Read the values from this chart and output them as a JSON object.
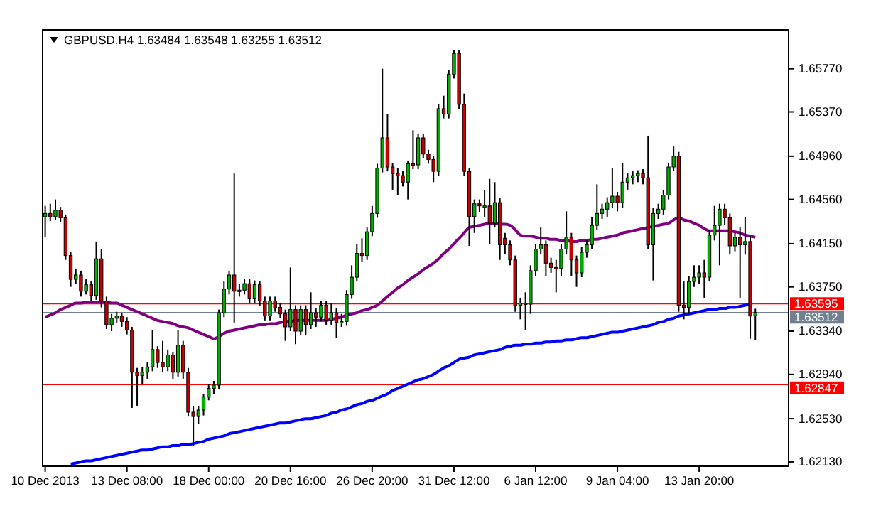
{
  "chart_data": {
    "type": "candlestick",
    "title": "GBPUSD,H4  1.63484 1.63548 1.63255 1.63512",
    "categories": [
      "10 Dec 2013",
      null,
      null,
      null,
      null,
      null,
      null,
      null,
      null,
      null,
      null,
      null,
      null,
      null,
      null,
      null,
      "13 Dec 08:00",
      null,
      null,
      null,
      null,
      null,
      null,
      null,
      null,
      null,
      null,
      null,
      null,
      null,
      null,
      null,
      "18 Dec 00:00",
      null,
      null,
      null,
      null,
      null,
      null,
      null,
      null,
      null,
      null,
      null,
      null,
      null,
      null,
      null,
      "20 Dec 16:00",
      null,
      null,
      null,
      null,
      null,
      null,
      null,
      null,
      null,
      null,
      null,
      null,
      null,
      null,
      null,
      "26 Dec 20:00",
      null,
      null,
      null,
      null,
      null,
      null,
      null,
      null,
      null,
      null,
      null,
      null,
      null,
      null,
      null,
      "31 Dec 12:00",
      null,
      null,
      null,
      null,
      null,
      null,
      null,
      null,
      null,
      null,
      null,
      null,
      null,
      null,
      null,
      "6 Jan 12:00",
      null,
      null,
      null,
      null,
      null,
      null,
      null,
      null,
      null,
      null,
      null,
      null,
      null,
      null,
      null,
      "9 Jan 04:00",
      null,
      null,
      null,
      null,
      null,
      null,
      null,
      null,
      null,
      null,
      null,
      null,
      null,
      null,
      null,
      "13 Jan 20:00",
      null,
      null,
      null,
      null,
      null,
      null,
      null,
      null,
      null,
      null,
      null
    ],
    "ohlc": [
      [
        1.644,
        1.645,
        1.6421,
        1.6443
      ],
      [
        1.6443,
        1.6452,
        1.6436,
        1.644
      ],
      [
        1.644,
        1.6456,
        1.6437,
        1.6446
      ],
      [
        1.6446,
        1.6449,
        1.6435,
        1.6439
      ],
      [
        1.6439,
        1.6442,
        1.64,
        1.6404
      ],
      [
        1.6404,
        1.6407,
        1.6375,
        1.6382
      ],
      [
        1.6382,
        1.6392,
        1.6378,
        1.6386
      ],
      [
        1.6386,
        1.639,
        1.6366,
        1.6371
      ],
      [
        1.6371,
        1.6382,
        1.6368,
        1.6377
      ],
      [
        1.6377,
        1.638,
        1.6362,
        1.6367
      ],
      [
        1.6367,
        1.6417,
        1.6363,
        1.6401
      ],
      [
        1.6401,
        1.641,
        1.6356,
        1.6362
      ],
      [
        1.6362,
        1.6366,
        1.6336,
        1.634
      ],
      [
        1.634,
        1.635,
        1.6334,
        1.6346
      ],
      [
        1.6346,
        1.6352,
        1.6342,
        1.6348
      ],
      [
        1.6348,
        1.6351,
        1.6338,
        1.6343
      ],
      [
        1.6343,
        1.6347,
        1.6331,
        1.6335
      ],
      [
        1.6335,
        1.6338,
        1.6263,
        1.6296
      ],
      [
        1.6296,
        1.63,
        1.6265,
        1.6293
      ],
      [
        1.6293,
        1.6301,
        1.6285,
        1.6296
      ],
      [
        1.6296,
        1.6305,
        1.629,
        1.6301
      ],
      [
        1.6301,
        1.6335,
        1.6297,
        1.6317
      ],
      [
        1.6317,
        1.632,
        1.63,
        1.6305
      ],
      [
        1.6305,
        1.6325,
        1.6296,
        1.6301
      ],
      [
        1.6301,
        1.6317,
        1.6297,
        1.6312
      ],
      [
        1.6312,
        1.6315,
        1.629,
        1.6296
      ],
      [
        1.6296,
        1.6335,
        1.6292,
        1.6321
      ],
      [
        1.6321,
        1.6325,
        1.629,
        1.6296
      ],
      [
        1.6296,
        1.63,
        1.6255,
        1.6259
      ],
      [
        1.6259,
        1.6265,
        1.6228,
        1.6255
      ],
      [
        1.6255,
        1.6265,
        1.6248,
        1.6261
      ],
      [
        1.6261,
        1.6276,
        1.6256,
        1.6273
      ],
      [
        1.6273,
        1.6285,
        1.627,
        1.6281
      ],
      [
        1.6281,
        1.6288,
        1.6276,
        1.6284
      ],
      [
        1.6284,
        1.6354,
        1.628,
        1.6351
      ],
      [
        1.6351,
        1.638,
        1.6347,
        1.6373
      ],
      [
        1.6373,
        1.639,
        1.6368,
        1.6386
      ],
      [
        1.6386,
        1.648,
        1.6342,
        1.6371
      ],
      [
        1.6371,
        1.6378,
        1.6366,
        1.6372
      ],
      [
        1.6372,
        1.6382,
        1.6368,
        1.6378
      ],
      [
        1.6378,
        1.6382,
        1.636,
        1.6364
      ],
      [
        1.6364,
        1.6381,
        1.636,
        1.6377
      ],
      [
        1.6377,
        1.638,
        1.6357,
        1.6362
      ],
      [
        1.6362,
        1.6366,
        1.6344,
        1.6348
      ],
      [
        1.6348,
        1.6366,
        1.6344,
        1.6362
      ],
      [
        1.6362,
        1.6366,
        1.6352,
        1.6356
      ],
      [
        1.6356,
        1.636,
        1.6346,
        1.635
      ],
      [
        1.635,
        1.6354,
        1.6325,
        1.6338
      ],
      [
        1.6338,
        1.6393,
        1.6334,
        1.6354
      ],
      [
        1.6354,
        1.6358,
        1.6322,
        1.6334
      ],
      [
        1.6334,
        1.6358,
        1.633,
        1.6354
      ],
      [
        1.6354,
        1.6358,
        1.633,
        1.634
      ],
      [
        1.634,
        1.637,
        1.6336,
        1.6351
      ],
      [
        1.6351,
        1.6355,
        1.6338,
        1.6347
      ],
      [
        1.6347,
        1.6362,
        1.6343,
        1.6358
      ],
      [
        1.6358,
        1.6362,
        1.634,
        1.6344
      ],
      [
        1.6344,
        1.636,
        1.634,
        1.6351
      ],
      [
        1.6351,
        1.6355,
        1.6328,
        1.6342
      ],
      [
        1.6342,
        1.635,
        1.6338,
        1.6343
      ],
      [
        1.6343,
        1.6372,
        1.6339,
        1.6368
      ],
      [
        1.6368,
        1.6395,
        1.6364,
        1.6384
      ],
      [
        1.6384,
        1.6415,
        1.638,
        1.6406
      ],
      [
        1.6406,
        1.642,
        1.6398,
        1.6404
      ],
      [
        1.6404,
        1.643,
        1.64,
        1.6426
      ],
      [
        1.6426,
        1.645,
        1.6422,
        1.6443
      ],
      [
        1.6443,
        1.6489,
        1.6439,
        1.6485
      ],
      [
        1.6485,
        1.6577,
        1.6481,
        1.6513
      ],
      [
        1.6513,
        1.6535,
        1.6482,
        1.6486
      ],
      [
        1.6486,
        1.649,
        1.6465,
        1.648
      ],
      [
        1.648,
        1.6485,
        1.646,
        1.6478
      ],
      [
        1.6478,
        1.6482,
        1.6468,
        1.6472
      ],
      [
        1.6472,
        1.6492,
        1.6456,
        1.6489
      ],
      [
        1.6489,
        1.652,
        1.6484,
        1.6488
      ],
      [
        1.6488,
        1.6517,
        1.6484,
        1.6513
      ],
      [
        1.6513,
        1.6517,
        1.6494,
        1.6498
      ],
      [
        1.6498,
        1.6502,
        1.6489,
        1.6493
      ],
      [
        1.6493,
        1.6496,
        1.6472,
        1.6482
      ],
      [
        1.6482,
        1.6544,
        1.6478,
        1.654
      ],
      [
        1.654,
        1.6552,
        1.6531,
        1.6535
      ],
      [
        1.6535,
        1.6576,
        1.6531,
        1.6572
      ],
      [
        1.6572,
        1.6594,
        1.6568,
        1.6591
      ],
      [
        1.6591,
        1.6594,
        1.654,
        1.6544
      ],
      [
        1.6544,
        1.6554,
        1.6478,
        1.6482
      ],
      [
        1.6482,
        1.6485,
        1.6413,
        1.644
      ],
      [
        1.644,
        1.6456,
        1.6425,
        1.6452
      ],
      [
        1.6452,
        1.6456,
        1.6444,
        1.645
      ],
      [
        1.645,
        1.6465,
        1.644,
        1.645
      ],
      [
        1.645,
        1.6475,
        1.6415,
        1.6434
      ],
      [
        1.6434,
        1.6472,
        1.643,
        1.6453
      ],
      [
        1.6453,
        1.6457,
        1.64,
        1.6414
      ],
      [
        1.642,
        1.6425,
        1.6405,
        1.6414
      ],
      [
        1.6414,
        1.6418,
        1.6395,
        1.64
      ],
      [
        1.64,
        1.6404,
        1.6352,
        1.6358
      ],
      [
        1.6358,
        1.6365,
        1.6345,
        1.636
      ],
      [
        1.636,
        1.637,
        1.6335,
        1.6359
      ],
      [
        1.6359,
        1.6395,
        1.635,
        1.639
      ],
      [
        1.639,
        1.6415,
        1.6385,
        1.641
      ],
      [
        1.641,
        1.643,
        1.6405,
        1.6414
      ],
      [
        1.6414,
        1.6418,
        1.6385,
        1.6397
      ],
      [
        1.6397,
        1.6402,
        1.6388,
        1.6393
      ],
      [
        1.6393,
        1.64,
        1.637,
        1.6392
      ],
      [
        1.6392,
        1.6415,
        1.6385,
        1.641
      ],
      [
        1.641,
        1.6445,
        1.6405,
        1.6421
      ],
      [
        1.6421,
        1.6425,
        1.6385,
        1.64
      ],
      [
        1.64,
        1.6404,
        1.6375,
        1.6388
      ],
      [
        1.6388,
        1.6412,
        1.6384,
        1.6407
      ],
      [
        1.6407,
        1.6418,
        1.6402,
        1.6414
      ],
      [
        1.6414,
        1.644,
        1.641,
        1.6432
      ],
      [
        1.6432,
        1.647,
        1.6428,
        1.6443
      ],
      [
        1.6443,
        1.6452,
        1.6438,
        1.6447
      ],
      [
        1.6447,
        1.6458,
        1.644,
        1.6453
      ],
      [
        1.6453,
        1.6485,
        1.6448,
        1.6459
      ],
      [
        1.6459,
        1.6463,
        1.6445,
        1.6453
      ],
      [
        1.6453,
        1.649,
        1.6448,
        1.6472
      ],
      [
        1.6472,
        1.648,
        1.6465,
        1.6476
      ],
      [
        1.6476,
        1.6482,
        1.647,
        1.6478
      ],
      [
        1.6478,
        1.6483,
        1.6472,
        1.648
      ],
      [
        1.648,
        1.6484,
        1.647,
        1.6476
      ],
      [
        1.6476,
        1.6515,
        1.641,
        1.6414
      ],
      [
        1.6414,
        1.6448,
        1.6381,
        1.6443
      ],
      [
        1.6443,
        1.6452,
        1.6438,
        1.6447
      ],
      [
        1.6447,
        1.6465,
        1.6442,
        1.646
      ],
      [
        1.646,
        1.649,
        1.6456,
        1.6486
      ],
      [
        1.6486,
        1.6505,
        1.6482,
        1.6496
      ],
      [
        1.6496,
        1.65,
        1.6352,
        1.6358
      ],
      [
        1.6358,
        1.638,
        1.6345,
        1.6356
      ],
      [
        1.6356,
        1.6385,
        1.635,
        1.638
      ],
      [
        1.638,
        1.6395,
        1.6375,
        1.6384
      ],
      [
        1.6384,
        1.6395,
        1.6378,
        1.6388
      ],
      [
        1.6388,
        1.64,
        1.6365,
        1.6384
      ],
      [
        1.6384,
        1.6428,
        1.638,
        1.6423
      ],
      [
        1.6423,
        1.645,
        1.6418,
        1.6432
      ],
      [
        1.6432,
        1.6452,
        1.6395,
        1.6447
      ],
      [
        1.6447,
        1.6452,
        1.6432,
        1.6439
      ],
      [
        1.6439,
        1.6443,
        1.6405,
        1.6413
      ],
      [
        1.6413,
        1.6425,
        1.6408,
        1.6421
      ],
      [
        1.6421,
        1.643,
        1.6365,
        1.6414
      ],
      [
        1.6414,
        1.644,
        1.6405,
        1.6417
      ],
      [
        1.6417,
        1.6422,
        1.6327,
        1.6348
      ],
      [
        1.63484,
        1.63548,
        1.63255,
        1.63512
      ]
    ],
    "series": [
      {
        "type": "line",
        "color": "#800080",
        "values": [
          1.6347,
          1.6349,
          1.6351,
          1.6354,
          1.6356,
          1.6358,
          1.636,
          1.636,
          1.6361,
          1.6361,
          1.6361,
          1.6361,
          1.6361,
          1.636,
          1.636,
          1.6358,
          1.6356,
          1.6354,
          1.6352,
          1.635,
          1.6348,
          1.6346,
          1.6344,
          1.6343,
          1.6342,
          1.6341,
          1.6339,
          1.6338,
          1.6337,
          1.6335,
          1.6333,
          1.6331,
          1.6329,
          1.6327,
          1.6329,
          1.6332,
          1.6334,
          1.6335,
          1.6336,
          1.6337,
          1.6338,
          1.6339,
          1.634,
          1.634,
          1.6341,
          1.6341,
          1.6342,
          1.6343,
          1.6343,
          1.6344,
          1.6344,
          1.6344,
          1.6344,
          1.6344,
          1.6344,
          1.6344,
          1.6345,
          1.6346,
          1.6347,
          1.6349,
          1.635,
          1.6351,
          1.6353,
          1.6354,
          1.6356,
          1.6358,
          1.6362,
          1.6366,
          1.637,
          1.6374,
          1.6377,
          1.6381,
          1.6384,
          1.6387,
          1.6391,
          1.6394,
          1.6397,
          1.6401,
          1.6406,
          1.641,
          1.6415,
          1.642,
          1.6425,
          1.643,
          1.6431,
          1.6432,
          1.6433,
          1.6434,
          1.6434,
          1.6433,
          1.6433,
          1.6432,
          1.6428,
          1.6423,
          1.6422,
          1.6422,
          1.6421,
          1.642,
          1.642,
          1.6419,
          1.6419,
          1.6418,
          1.6418,
          1.6417,
          1.6417,
          1.6418,
          1.6418,
          1.6419,
          1.6419,
          1.642,
          1.6421,
          1.6422,
          1.6423,
          1.6425,
          1.6426,
          1.6427,
          1.6428,
          1.6429,
          1.643,
          1.6431,
          1.6432,
          1.6433,
          1.6434,
          1.6437,
          1.6439,
          1.6437,
          1.6436,
          1.6434,
          1.6432,
          1.6429,
          1.6427,
          1.6427,
          1.6427,
          1.6427,
          1.6427,
          1.6426,
          1.6425,
          1.6423,
          1.6422,
          1.6421
        ]
      },
      {
        "type": "line",
        "color": "#0000ff",
        "values": [
          null,
          null,
          null,
          null,
          null,
          1.6211,
          1.6212,
          1.6213,
          1.6214,
          1.6214,
          1.6215,
          1.6216,
          1.6217,
          1.6218,
          1.6219,
          1.622,
          1.6221,
          1.6222,
          1.6223,
          1.6224,
          1.6224,
          1.6225,
          1.6226,
          1.6227,
          1.6227,
          1.6228,
          1.6228,
          1.6229,
          1.6229,
          1.623,
          1.6231,
          1.6232,
          1.6234,
          1.6235,
          1.6236,
          1.6237,
          1.6239,
          1.624,
          1.6241,
          1.6242,
          1.6243,
          1.6244,
          1.6245,
          1.6246,
          1.6247,
          1.6248,
          1.6249,
          1.6249,
          1.625,
          1.6251,
          1.6252,
          1.6253,
          1.6253,
          1.6254,
          1.6255,
          1.6256,
          1.6258,
          1.6259,
          1.6261,
          1.6262,
          1.6264,
          1.6266,
          1.6267,
          1.6269,
          1.627,
          1.6272,
          1.6274,
          1.6276,
          1.6279,
          1.6281,
          1.6283,
          1.6285,
          1.6287,
          1.6289,
          1.629,
          1.6292,
          1.6294,
          1.6297,
          1.63,
          1.6302,
          1.6305,
          1.6308,
          1.6309,
          1.631,
          1.6312,
          1.6313,
          1.6314,
          1.6315,
          1.6316,
          1.6317,
          1.6319,
          1.632,
          1.6321,
          1.6321,
          1.6322,
          1.6322,
          1.6323,
          1.6323,
          1.6324,
          1.6324,
          1.6325,
          1.6325,
          1.6326,
          1.6326,
          1.6327,
          1.6328,
          1.6328,
          1.6329,
          1.633,
          1.6331,
          1.6332,
          1.6333,
          1.6333,
          1.6334,
          1.6335,
          1.6336,
          1.6337,
          1.6338,
          1.6339,
          1.634,
          1.6342,
          1.6343,
          1.6345,
          1.6346,
          1.6348,
          1.6349,
          1.635,
          1.6351,
          1.6352,
          1.6353,
          1.6354,
          1.6354,
          1.6355,
          1.6355,
          1.6356,
          1.6356,
          1.6357,
          1.6358,
          1.6359,
          null
        ]
      }
    ],
    "ylim": [
      1.6209,
      1.6613
    ],
    "yticks": [
      {
        "value": 1.6213,
        "label": "1.62130"
      },
      {
        "value": 1.6253,
        "label": "1.62530"
      },
      {
        "value": 1.6294,
        "label": "1.62940"
      },
      {
        "value": 1.6334,
        "label": "1.63340"
      },
      {
        "value": 1.6375,
        "label": "1.63750"
      },
      {
        "value": 1.6415,
        "label": "1.64150"
      },
      {
        "value": 1.6456,
        "label": "1.64560"
      },
      {
        "value": 1.6496,
        "label": "1.64960"
      },
      {
        "value": 1.6537,
        "label": "1.65370"
      },
      {
        "value": 1.6577,
        "label": "1.65770"
      }
    ],
    "ref_lines": [
      {
        "axis": "y",
        "value": 1.63595,
        "label": "1.63595",
        "color": "#ff0000"
      },
      {
        "axis": "y",
        "value": 1.63512,
        "label": "1.63512",
        "color": "#708090"
      },
      {
        "axis": "y",
        "value": 1.62847,
        "label": "1.62847",
        "color": "#ff0000"
      }
    ],
    "grid": false
  }
}
